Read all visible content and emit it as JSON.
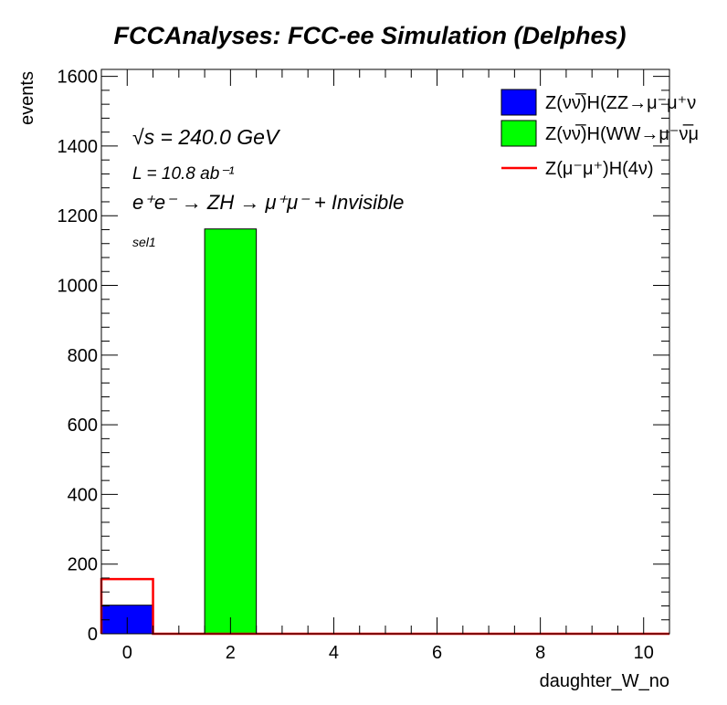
{
  "chart_data": {
    "type": "bar",
    "title": "FCCAnalyses: FCC-ee Simulation (Delphes)",
    "xlabel": "daughter_W_no",
    "ylabel": "events",
    "xlim": [
      -0.5,
      10.5
    ],
    "ylim": [
      0,
      1620
    ],
    "x_ticks": [
      0,
      2,
      4,
      6,
      8,
      10
    ],
    "y_ticks": [
      0,
      200,
      400,
      600,
      800,
      1000,
      1200,
      1400,
      1600
    ],
    "bin_width": 1,
    "series": [
      {
        "name": "Z(νν̅)H(ZZ→μ⁻μ⁺ν",
        "style": "stacked-fill",
        "color": "#0000ff",
        "x": [
          0,
          2
        ],
        "values": [
          82,
          0
        ]
      },
      {
        "name": "Z(νν̅)H(WW→μ⁻ν̅μ",
        "style": "stacked-fill",
        "color": "#00ff00",
        "x": [
          0,
          2
        ],
        "values": [
          0,
          1162
        ]
      },
      {
        "name": "Z(μ⁻μ⁺)H(4ν)",
        "style": "line-histogram",
        "color": "#ff0000",
        "x": [
          0,
          2
        ],
        "values": [
          157,
          0
        ]
      }
    ],
    "annotations": [
      "√s = 240.0 GeV",
      "L = 10.8 ab⁻¹",
      "e⁺e⁻ → ZH → μ⁺μ⁻ + Invisible",
      "sel1"
    ],
    "grid": false,
    "legend_position": "top-right"
  }
}
